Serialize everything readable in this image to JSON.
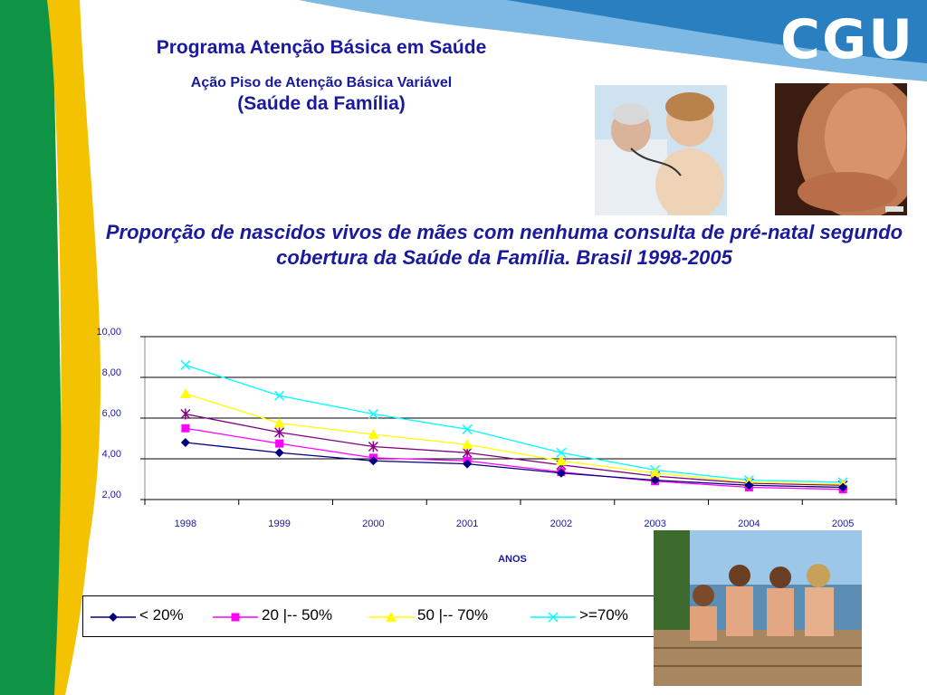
{
  "header": {
    "title": "Programa Atenção Básica em Saúde",
    "subtitle": "Ação Piso de Atenção Básica Variável",
    "subtitle2": "(Saúde da Família)"
  },
  "logo": {
    "text": "CGU"
  },
  "colors": {
    "green": "#0f9445",
    "yellow": "#f3c200",
    "blue": "#2a7fc1",
    "title": "#1a1a9c"
  },
  "chart_data": {
    "type": "line",
    "title": "Proporção de nascidos vivos de mães com nenhuma consulta de pré-natal segundo cobertura da Saúde da Família. Brasil 1998-2005",
    "xlabel": "ANOS",
    "ylabel": "",
    "categories": [
      "1998",
      "1999",
      "2000",
      "2001",
      "2002",
      "2003",
      "2004",
      "2005"
    ],
    "y_ticks": [
      "10,00",
      "8,00",
      "6,00",
      "4,00",
      "2,00"
    ],
    "ylim": [
      2,
      10
    ],
    "grid": true,
    "legend_placement": "bottom",
    "series": [
      {
        "name": "< 20%",
        "color": "#000080",
        "marker": "diamond",
        "values": [
          4.8,
          4.3,
          3.9,
          3.75,
          3.3,
          2.95,
          2.7,
          2.6
        ]
      },
      {
        "name": "20 |-- 50%",
        "color": "#ff00ff",
        "marker": "square",
        "values": [
          5.5,
          4.75,
          4.05,
          3.9,
          3.35,
          2.9,
          2.6,
          2.5
        ]
      },
      {
        "name": "50 |-- 70%",
        "color": "#ffff00",
        "marker": "triangle",
        "values": [
          7.2,
          5.75,
          5.2,
          4.7,
          3.9,
          3.3,
          2.85,
          2.75
        ]
      },
      {
        "name": ">=70%",
        "color": "#00ffff",
        "marker": "x",
        "values": [
          8.6,
          7.1,
          6.2,
          5.45,
          4.3,
          3.45,
          2.95,
          2.85
        ]
      },
      {
        "name": "",
        "color": "#800080",
        "marker": "star",
        "values": [
          6.2,
          5.3,
          4.6,
          4.3,
          3.7,
          3.15,
          2.8,
          2.7
        ]
      }
    ]
  }
}
